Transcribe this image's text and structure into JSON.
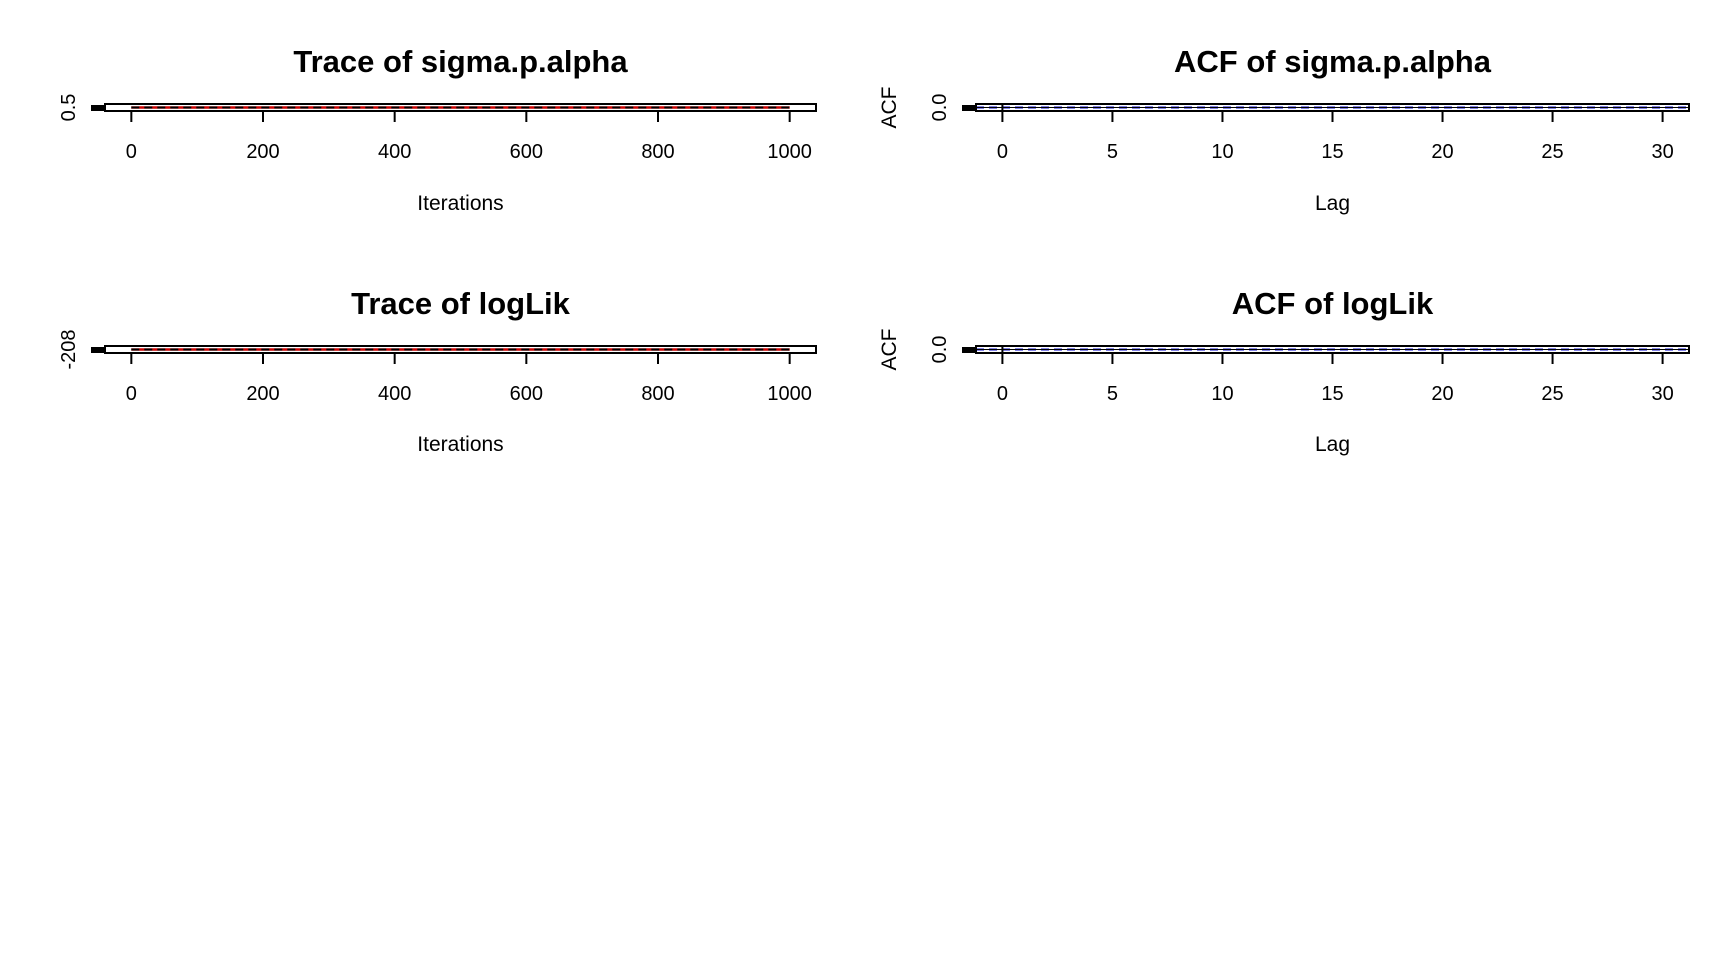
{
  "chart_data": [
    {
      "type": "line",
      "title": "Trace of sigma.p.alpha",
      "xlabel": "Iterations",
      "ylabel": "",
      "x_ticks": [
        "0",
        "200",
        "400",
        "600",
        "800",
        "1000"
      ],
      "x_tick_values": [
        0,
        200,
        400,
        600,
        800,
        1000
      ],
      "y_ticks": [
        "0.5"
      ],
      "y_tick_values": [
        0.5
      ],
      "xlim": [
        -40,
        1040
      ],
      "ylim": [
        0.46,
        0.54
      ],
      "series": [
        {
          "values_x": [
            0,
            150,
            300,
            450,
            600,
            750,
            900,
            1000
          ],
          "values_y": [
            0.5,
            0.5,
            0.5,
            0.5,
            0.5,
            0.5,
            0.5,
            0.5
          ],
          "color": "#cc0000"
        },
        {
          "values_x": [
            0,
            150,
            300,
            450,
            600,
            750,
            900,
            1000
          ],
          "values_y": [
            0.5,
            0.5,
            0.5,
            0.5,
            0.5,
            0.5,
            0.5,
            0.5
          ],
          "color": "#000000",
          "dashed": true
        }
      ],
      "grid": false,
      "legend": "none"
    },
    {
      "type": "bar",
      "title": "ACF of sigma.p.alpha",
      "xlabel": "Lag",
      "ylabel": "ACF",
      "x_ticks": [
        "0",
        "5",
        "10",
        "15",
        "20",
        "25",
        "30"
      ],
      "x_tick_values": [
        0,
        5,
        10,
        15,
        20,
        25,
        30
      ],
      "y_ticks": [
        "0.0"
      ],
      "y_tick_values": [
        0.0
      ],
      "xlim": [
        -1.2,
        31.2
      ],
      "ylim": [
        -0.2,
        0.2
      ],
      "confidence_band": [
        0.0,
        0.0
      ],
      "confidence_color": "#0000cc",
      "grid": false,
      "legend": "none"
    },
    {
      "type": "line",
      "title": "Trace of logLik",
      "xlabel": "Iterations",
      "ylabel": "",
      "x_ticks": [
        "0",
        "200",
        "400",
        "600",
        "800",
        "1000"
      ],
      "x_tick_values": [
        0,
        200,
        400,
        600,
        800,
        1000
      ],
      "y_ticks": [
        "-208"
      ],
      "y_tick_values": [
        -208
      ],
      "xlim": [
        -40,
        1040
      ],
      "ylim": [
        -208.4,
        -207.6
      ],
      "series": [
        {
          "values_x": [
            0,
            150,
            300,
            450,
            600,
            750,
            900,
            1000
          ],
          "values_y": [
            -208,
            -208,
            -208,
            -208,
            -208,
            -208,
            -208,
            -208
          ],
          "color": "#cc0000"
        },
        {
          "values_x": [
            0,
            150,
            300,
            450,
            600,
            750,
            900,
            1000
          ],
          "values_y": [
            -208,
            -208,
            -208,
            -208,
            -208,
            -208,
            -208,
            -208
          ],
          "color": "#000000",
          "dashed": true
        }
      ],
      "grid": false,
      "legend": "none"
    },
    {
      "type": "bar",
      "title": "ACF of logLik",
      "xlabel": "Lag",
      "ylabel": "ACF",
      "x_ticks": [
        "0",
        "5",
        "10",
        "15",
        "20",
        "25",
        "30"
      ],
      "x_tick_values": [
        0,
        5,
        10,
        15,
        20,
        25,
        30
      ],
      "y_ticks": [
        "0.0"
      ],
      "y_tick_values": [
        0.0
      ],
      "xlim": [
        -1.2,
        31.2
      ],
      "ylim": [
        -0.2,
        0.2
      ],
      "confidence_band": [
        0.0,
        0.0
      ],
      "confidence_color": "#0000cc",
      "grid": false,
      "legend": "none"
    }
  ]
}
